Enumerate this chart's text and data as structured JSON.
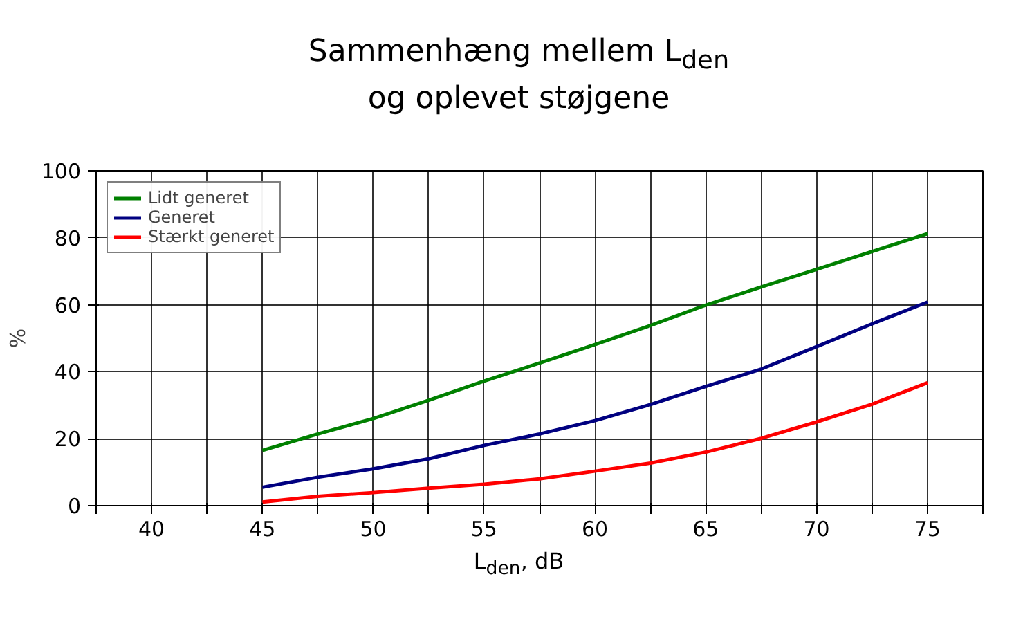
{
  "chart_data": {
    "type": "line",
    "title": "Sammenhæng mellem L$_{den}$\nog oplevet støjgene",
    "xlabel": "L$_{den}$, dB",
    "ylabel": "%",
    "x": [
      45,
      47.5,
      50,
      52.5,
      55,
      57.5,
      60,
      62.5,
      65,
      67.5,
      70,
      72.5,
      75
    ],
    "series": [
      {
        "name": "Lidt generet",
        "color": "#008000",
        "values": [
          16.5,
          21.4,
          26,
          31.5,
          37.2,
          42.6,
          48.1,
          53.8,
          59.9,
          65.3,
          70.6,
          75.9,
          81.2
        ]
      },
      {
        "name": "Generet",
        "color": "#000080",
        "values": [
          5.5,
          8.5,
          11,
          14,
          18,
          21.4,
          25.4,
          30.2,
          35.6,
          40.8,
          47.5,
          54.3,
          60.8
        ]
      },
      {
        "name": "Stærkt generet",
        "color": "#ff0000",
        "values": [
          1.1,
          2.8,
          3.9,
          5.2,
          6.4,
          8,
          10.3,
          12.7,
          16,
          20.1,
          25,
          30.3,
          36.7
        ]
      }
    ],
    "xlim": [
      37.5,
      77.5
    ],
    "xticks": [
      {
        "value": 37.5,
        "label": null
      },
      40,
      {
        "value": 42.5,
        "label": null
      },
      45,
      {
        "value": 47.5,
        "label": null
      },
      50,
      {
        "value": 52.5,
        "label": null
      },
      55,
      {
        "value": 57.5,
        "label": null
      },
      60,
      {
        "value": 62.5,
        "label": null
      },
      65,
      {
        "value": 67.5,
        "label": null
      },
      70,
      {
        "value": 72.5,
        "label": null
      },
      75,
      {
        "value": 77.5,
        "label": null
      }
    ],
    "ylim": [
      0,
      100
    ],
    "yticks": [
      0,
      20,
      40,
      60,
      80,
      100
    ],
    "grid": true,
    "legend": "top left",
    "line_style": "solid"
  }
}
